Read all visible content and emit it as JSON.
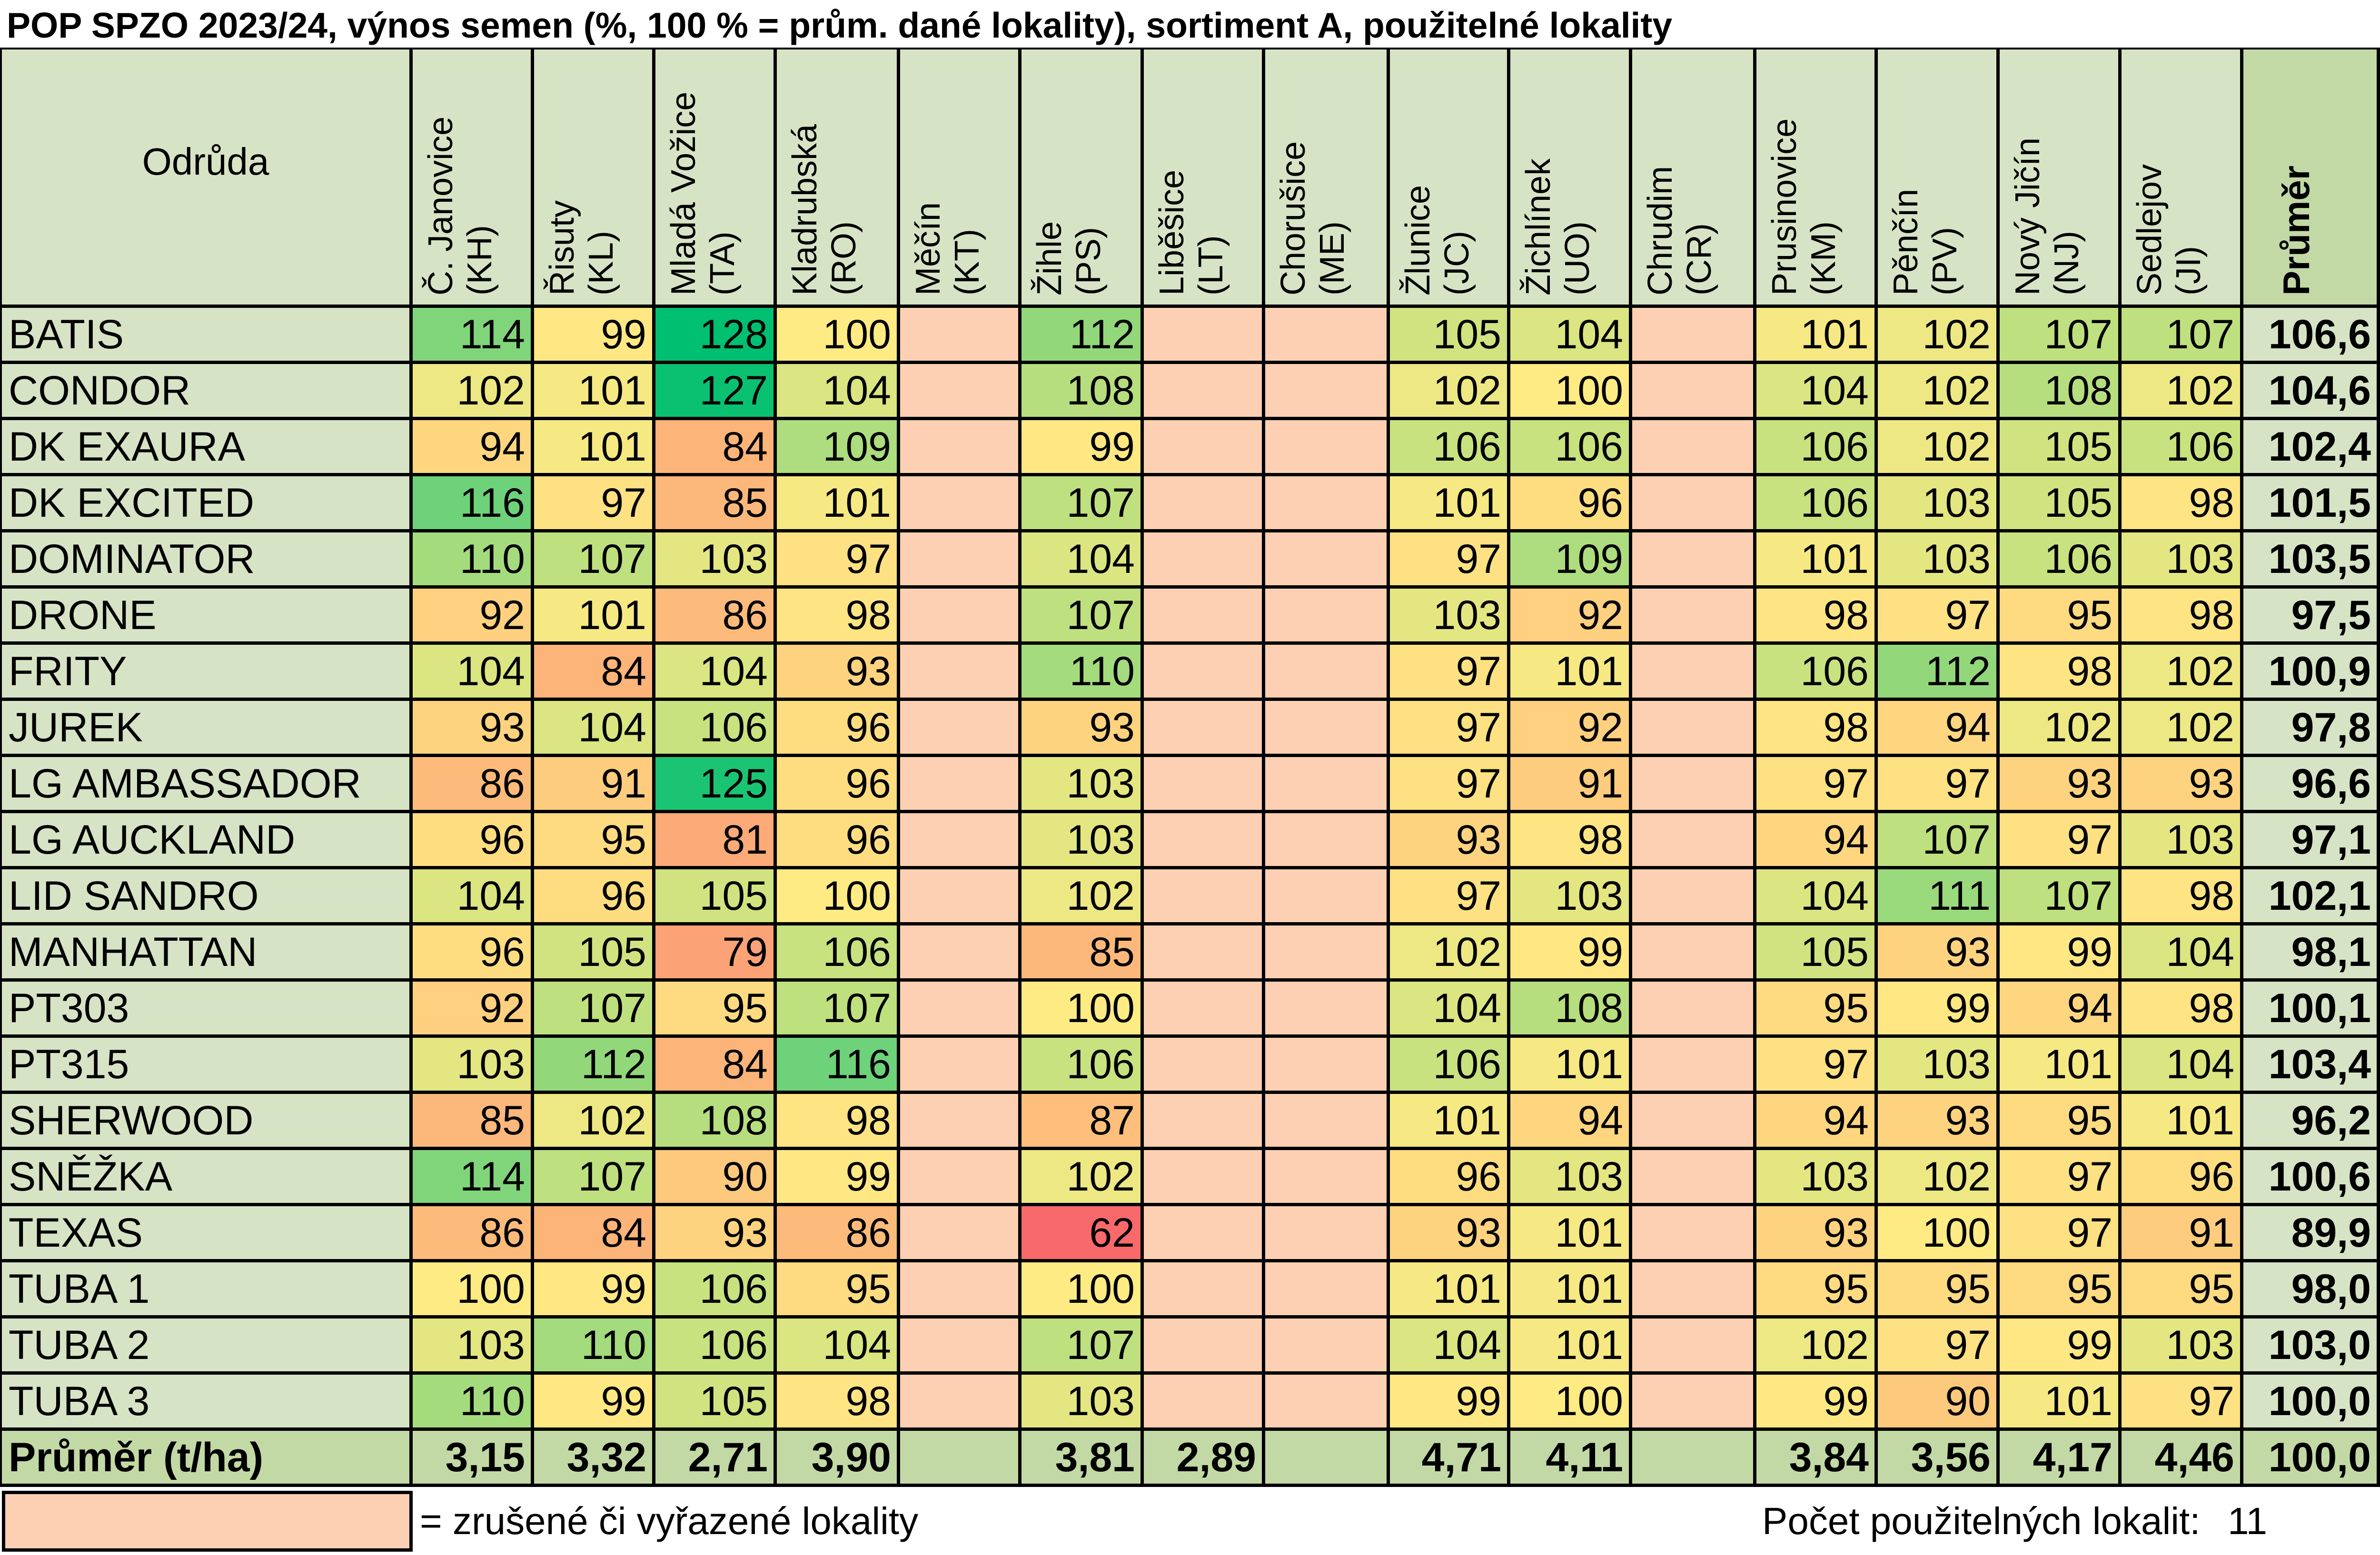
{
  "title": "POP SPZO 2023/24, výnos semen (%, 100 % = prům. dané lokality), sortiment A, použitelné lokality",
  "legend": {
    "text": "= zrušené či vyřazené lokality",
    "excluded_color": "#fdd0b4"
  },
  "usable_count": {
    "label": "Počet použitelných lokalit:",
    "value": "11"
  },
  "colors": {
    "header_bg": "#d6e4c5",
    "mean_header_bg": "#c3d9a5",
    "mean_col_bg": "#d6e4c5",
    "footer_bg": "#c3d9a5",
    "excluded": "#fdd0b4",
    "scale_low": "#f8696b",
    "scale_mid": "#ffeb84",
    "scale_high": "#00bf70"
  },
  "chart_data": {
    "type": "table",
    "title": "POP SPZO 2023/24, výnos semen (%, 100 % = prům. dané lokality), sortiment A, použitelné lokality",
    "variety_header": "Odrůda",
    "mean_header": "Průměr",
    "columns": [
      {
        "name": "Č. Janovice\n(KH)",
        "excluded": false
      },
      {
        "name": "Řisuty\n(KL)",
        "excluded": false
      },
      {
        "name": "Mladá Vožice\n(TA)",
        "excluded": false
      },
      {
        "name": "Kladrubská\n(RO)",
        "excluded": false
      },
      {
        "name": "Měčín\n(KT)",
        "excluded": true
      },
      {
        "name": "Žihle\n(PS)",
        "excluded": false
      },
      {
        "name": "Liběšice\n(LT)",
        "excluded": true
      },
      {
        "name": "Chorušice\n(ME)",
        "excluded": true
      },
      {
        "name": "Žlunice\n(JC)",
        "excluded": false
      },
      {
        "name": "Žichlínek\n(UO)",
        "excluded": false
      },
      {
        "name": "Chrudim\n(CR)",
        "excluded": true
      },
      {
        "name": "Prusinovice\n(KM)",
        "excluded": false
      },
      {
        "name": "Pěnčín\n(PV)",
        "excluded": false
      },
      {
        "name": "Nový Jičín\n(NJ)",
        "excluded": false
      },
      {
        "name": "Sedlejov\n(JI)",
        "excluded": false
      }
    ],
    "rows": [
      {
        "name": "BATIS",
        "values": [
          114,
          99,
          128,
          100,
          null,
          112,
          null,
          null,
          105,
          104,
          null,
          101,
          102,
          107,
          107
        ],
        "mean": "106,6"
      },
      {
        "name": "CONDOR",
        "values": [
          102,
          101,
          127,
          104,
          null,
          108,
          null,
          null,
          102,
          100,
          null,
          104,
          102,
          108,
          102
        ],
        "mean": "104,6"
      },
      {
        "name": "DK EXAURA",
        "values": [
          94,
          101,
          84,
          109,
          null,
          99,
          null,
          null,
          106,
          106,
          null,
          106,
          102,
          105,
          106
        ],
        "mean": "102,4"
      },
      {
        "name": "DK EXCITED",
        "values": [
          116,
          97,
          85,
          101,
          null,
          107,
          null,
          null,
          101,
          96,
          null,
          106,
          103,
          105,
          98
        ],
        "mean": "101,5"
      },
      {
        "name": "DOMINATOR",
        "values": [
          110,
          107,
          103,
          97,
          null,
          104,
          null,
          null,
          97,
          109,
          null,
          101,
          103,
          106,
          103
        ],
        "mean": "103,5"
      },
      {
        "name": "DRONE",
        "values": [
          92,
          101,
          86,
          98,
          null,
          107,
          null,
          null,
          103,
          92,
          null,
          98,
          97,
          95,
          98
        ],
        "mean": "97,5"
      },
      {
        "name": "FRITY",
        "values": [
          104,
          84,
          104,
          93,
          null,
          110,
          null,
          null,
          97,
          101,
          null,
          106,
          112,
          98,
          102
        ],
        "mean": "100,9"
      },
      {
        "name": "JUREK",
        "values": [
          93,
          104,
          106,
          96,
          null,
          93,
          null,
          null,
          97,
          92,
          null,
          98,
          94,
          102,
          102
        ],
        "mean": "97,8"
      },
      {
        "name": "LG AMBASSADOR",
        "values": [
          86,
          91,
          125,
          96,
          null,
          103,
          null,
          null,
          97,
          91,
          null,
          97,
          97,
          93,
          93
        ],
        "mean": "96,6"
      },
      {
        "name": "LG AUCKLAND",
        "values": [
          96,
          95,
          81,
          96,
          null,
          103,
          null,
          null,
          93,
          98,
          null,
          94,
          107,
          97,
          103
        ],
        "mean": "97,1"
      },
      {
        "name": "LID SANDRO",
        "values": [
          104,
          96,
          105,
          100,
          null,
          102,
          null,
          null,
          97,
          103,
          null,
          104,
          111,
          107,
          98
        ],
        "mean": "102,1"
      },
      {
        "name": "MANHATTAN",
        "values": [
          96,
          105,
          79,
          106,
          null,
          85,
          null,
          null,
          102,
          99,
          null,
          105,
          93,
          99,
          104
        ],
        "mean": "98,1"
      },
      {
        "name": "PT303",
        "values": [
          92,
          107,
          95,
          107,
          null,
          100,
          null,
          null,
          104,
          108,
          null,
          95,
          99,
          94,
          98
        ],
        "mean": "100,1"
      },
      {
        "name": "PT315",
        "values": [
          103,
          112,
          84,
          116,
          null,
          106,
          null,
          null,
          106,
          101,
          null,
          97,
          103,
          101,
          104
        ],
        "mean": "103,4"
      },
      {
        "name": "SHERWOOD",
        "values": [
          85,
          102,
          108,
          98,
          null,
          87,
          null,
          null,
          101,
          94,
          null,
          94,
          93,
          95,
          101
        ],
        "mean": "96,2"
      },
      {
        "name": "SNĚŽKA",
        "values": [
          114,
          107,
          90,
          99,
          null,
          102,
          null,
          null,
          96,
          103,
          null,
          103,
          102,
          97,
          96
        ],
        "mean": "100,6"
      },
      {
        "name": "TEXAS",
        "values": [
          86,
          84,
          93,
          86,
          null,
          62,
          null,
          null,
          93,
          101,
          null,
          93,
          100,
          97,
          91
        ],
        "mean": "89,9"
      },
      {
        "name": "TUBA 1",
        "values": [
          100,
          99,
          106,
          95,
          null,
          100,
          null,
          null,
          101,
          101,
          null,
          95,
          95,
          95,
          95
        ],
        "mean": "98,0"
      },
      {
        "name": "TUBA 2",
        "values": [
          103,
          110,
          106,
          104,
          null,
          107,
          null,
          null,
          104,
          101,
          null,
          102,
          97,
          99,
          103
        ],
        "mean": "103,0"
      },
      {
        "name": "TUBA 3",
        "values": [
          110,
          99,
          105,
          98,
          null,
          103,
          null,
          null,
          99,
          100,
          null,
          99,
          90,
          101,
          97
        ],
        "mean": "100,0"
      }
    ],
    "footer": {
      "label": "Průměr (t/ha)",
      "values": [
        "3,15",
        "3,32",
        "2,71",
        "3,90",
        "",
        "3,81",
        "2,89",
        "",
        "4,71",
        "4,11",
        "",
        "3,84",
        "3,56",
        "4,17",
        "4,46"
      ],
      "mean": "100,0"
    }
  }
}
